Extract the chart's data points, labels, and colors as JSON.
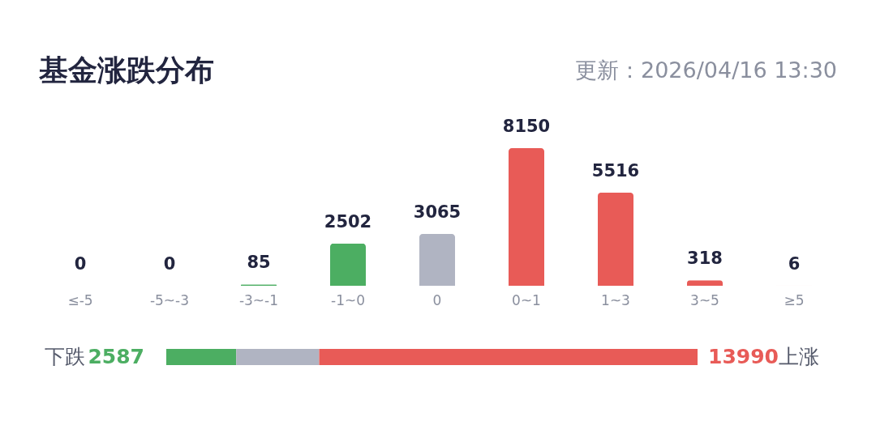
{
  "chart_data": [
    {
      "type": "bar",
      "title": "基金涨跌分布",
      "subtitle": "更新：2026/04/16 13:30",
      "categories": [
        "≤-5",
        "-5~-3",
        "-3~-1",
        "-1~0",
        "0",
        "0~1",
        "1~3",
        "3~5",
        "≥5"
      ],
      "values": [
        0,
        0,
        85,
        2502,
        3065,
        8150,
        5516,
        318,
        6
      ],
      "colors": [
        "#4cae62",
        "#4cae62",
        "#4cae62",
        "#4cae62",
        "#b0b4c2",
        "#e85b57",
        "#e85b57",
        "#e85b57",
        "#e85b57"
      ],
      "data_labels": true
    },
    {
      "type": "bar",
      "orientation": "horizontal",
      "stacked": true,
      "categories": [
        null
      ],
      "annotations": [
        "下跌",
        "上涨"
      ],
      "series": [
        {
          "color": "#4cae62",
          "values": [
            2587
          ],
          "value_labels": [
            "2587"
          ]
        },
        {
          "color": "#b0b4c2",
          "values": [
            3065
          ]
        },
        {
          "color": "#e85b57",
          "values": [
            13990
          ],
          "value_labels": [
            "13990"
          ]
        }
      ]
    }
  ]
}
